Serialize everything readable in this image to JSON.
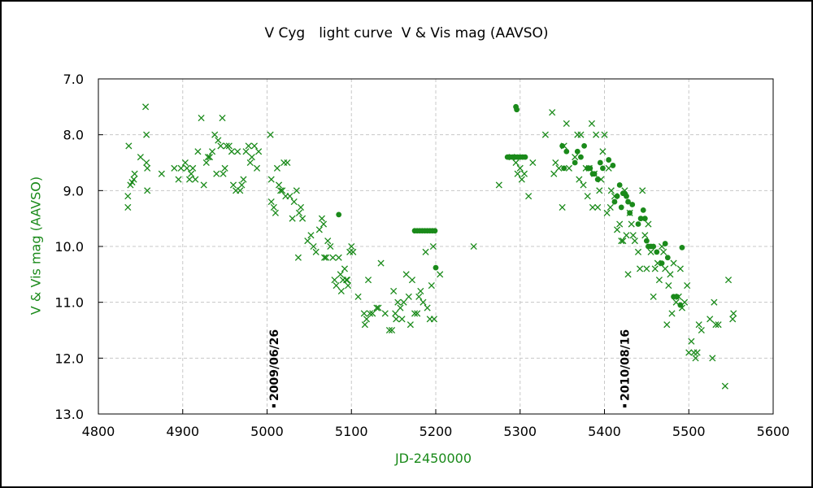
{
  "chart_data": {
    "type": "scatter",
    "title": "V Cyg　light curve  V & Vis mag (AAVSO)",
    "xlabel": "JD-2450000",
    "ylabel": "V & Vis mag (AAVSO)",
    "xlim": [
      4800,
      5600
    ],
    "ylim": [
      13.0,
      7.0
    ],
    "y_inverted": true,
    "xticks": [
      "4800",
      "4900",
      "5000",
      "5100",
      "5200",
      "5300",
      "5400",
      "5500",
      "5600"
    ],
    "yticks": [
      "7.0",
      "8.0",
      "9.0",
      "10.0",
      "11.0",
      "12.0",
      "13.0"
    ],
    "grid": true,
    "colors": {
      "series": "#1a8a1a",
      "grid": "#c8c8c8",
      "axis": "#000000"
    },
    "annotations": [
      {
        "text": "2009/06/26",
        "x": 5008
      },
      {
        "text": "2010/08/16",
        "x": 5424
      }
    ],
    "series": [
      {
        "name": "Vis",
        "marker": "x",
        "points": [
          [
            4835,
            9.1
          ],
          [
            4835,
            9.3
          ],
          [
            4836,
            8.2
          ],
          [
            4838,
            8.9
          ],
          [
            4840,
            8.85
          ],
          [
            4842,
            8.8
          ],
          [
            4843,
            8.7
          ],
          [
            4850,
            8.4
          ],
          [
            4856,
            7.5
          ],
          [
            4857,
            8.0
          ],
          [
            4857,
            8.5
          ],
          [
            4858,
            8.6
          ],
          [
            4858,
            9.0
          ],
          [
            4875,
            8.7
          ],
          [
            4890,
            8.6
          ],
          [
            4895,
            8.8
          ],
          [
            4898,
            8.6
          ],
          [
            4903,
            8.5
          ],
          [
            4905,
            8.6
          ],
          [
            4908,
            8.8
          ],
          [
            4910,
            8.7
          ],
          [
            4912,
            8.6
          ],
          [
            4915,
            8.8
          ],
          [
            4918,
            8.3
          ],
          [
            4922,
            7.7
          ],
          [
            4925,
            8.9
          ],
          [
            4928,
            8.5
          ],
          [
            4930,
            8.4
          ],
          [
            4932,
            8.4
          ],
          [
            4935,
            8.3
          ],
          [
            4938,
            8.0
          ],
          [
            4940,
            8.7
          ],
          [
            4942,
            8.1
          ],
          [
            4945,
            8.2
          ],
          [
            4947,
            7.7
          ],
          [
            4948,
            8.7
          ],
          [
            4950,
            8.6
          ],
          [
            4952,
            8.2
          ],
          [
            4955,
            8.2
          ],
          [
            4958,
            8.3
          ],
          [
            4960,
            8.9
          ],
          [
            4963,
            9.0
          ],
          [
            4965,
            8.3
          ],
          [
            4968,
            9.0
          ],
          [
            4970,
            8.9
          ],
          [
            4972,
            8.8
          ],
          [
            4975,
            8.3
          ],
          [
            4978,
            8.2
          ],
          [
            4980,
            8.5
          ],
          [
            4982,
            8.4
          ],
          [
            4985,
            8.2
          ],
          [
            4988,
            8.6
          ],
          [
            4990,
            8.3
          ],
          [
            5004,
            8.0
          ],
          [
            5005,
            8.8
          ],
          [
            5005,
            9.2
          ],
          [
            5008,
            9.3
          ],
          [
            5010,
            9.4
          ],
          [
            5012,
            8.6
          ],
          [
            5014,
            8.9
          ],
          [
            5016,
            9.0
          ],
          [
            5018,
            9.0
          ],
          [
            5020,
            8.5
          ],
          [
            5022,
            9.1
          ],
          [
            5024,
            8.5
          ],
          [
            5027,
            9.1
          ],
          [
            5030,
            9.5
          ],
          [
            5032,
            9.2
          ],
          [
            5035,
            9.0
          ],
          [
            5037,
            10.2
          ],
          [
            5038,
            9.4
          ],
          [
            5040,
            9.3
          ],
          [
            5042,
            9.5
          ],
          [
            5048,
            9.9
          ],
          [
            5052,
            9.8
          ],
          [
            5055,
            10.0
          ],
          [
            5058,
            10.1
          ],
          [
            5062,
            9.7
          ],
          [
            5065,
            9.5
          ],
          [
            5067,
            9.6
          ],
          [
            5068,
            10.2
          ],
          [
            5070,
            10.2
          ],
          [
            5072,
            9.9
          ],
          [
            5075,
            10.0
          ],
          [
            5078,
            10.2
          ],
          [
            5080,
            10.6
          ],
          [
            5082,
            10.7
          ],
          [
            5085,
            10.2
          ],
          [
            5087,
            10.5
          ],
          [
            5088,
            10.8
          ],
          [
            5090,
            10.6
          ],
          [
            5092,
            10.4
          ],
          [
            5094,
            10.6
          ],
          [
            5095,
            10.6
          ],
          [
            5096,
            10.7
          ],
          [
            5098,
            10.1
          ],
          [
            5100,
            10.0
          ],
          [
            5102,
            10.1
          ],
          [
            5108,
            10.9
          ],
          [
            5115,
            11.2
          ],
          [
            5116,
            11.4
          ],
          [
            5118,
            11.3
          ],
          [
            5120,
            10.6
          ],
          [
            5122,
            11.2
          ],
          [
            5125,
            11.2
          ],
          [
            5130,
            11.1
          ],
          [
            5132,
            11.1
          ],
          [
            5135,
            10.3
          ],
          [
            5140,
            11.2
          ],
          [
            5145,
            11.5
          ],
          [
            5148,
            11.5
          ],
          [
            5150,
            10.8
          ],
          [
            5152,
            11.2
          ],
          [
            5153,
            11.3
          ],
          [
            5155,
            11.0
          ],
          [
            5158,
            11.1
          ],
          [
            5160,
            11.3
          ],
          [
            5162,
            11.0
          ],
          [
            5165,
            10.5
          ],
          [
            5168,
            10.9
          ],
          [
            5170,
            11.4
          ],
          [
            5172,
            10.6
          ],
          [
            5175,
            11.2
          ],
          [
            5178,
            11.2
          ],
          [
            5180,
            10.9
          ],
          [
            5182,
            10.8
          ],
          [
            5185,
            11.0
          ],
          [
            5188,
            10.1
          ],
          [
            5190,
            11.1
          ],
          [
            5193,
            11.3
          ],
          [
            5195,
            10.7
          ],
          [
            5197,
            10.0
          ],
          [
            5198,
            11.3
          ],
          [
            5205,
            10.5
          ],
          [
            5245,
            10.0
          ],
          [
            5275,
            8.9
          ],
          [
            5290,
            8.4
          ],
          [
            5295,
            8.5
          ],
          [
            5297,
            8.7
          ],
          [
            5300,
            8.6
          ],
          [
            5302,
            8.8
          ],
          [
            5305,
            8.7
          ],
          [
            5310,
            9.1
          ],
          [
            5315,
            8.5
          ],
          [
            5330,
            8.0
          ],
          [
            5338,
            7.6
          ],
          [
            5340,
            8.7
          ],
          [
            5342,
            8.5
          ],
          [
            5346,
            8.6
          ],
          [
            5350,
            9.3
          ],
          [
            5352,
            8.2
          ],
          [
            5355,
            7.8
          ],
          [
            5358,
            8.6
          ],
          [
            5365,
            8.4
          ],
          [
            5368,
            8.0
          ],
          [
            5370,
            8.8
          ],
          [
            5372,
            8.0
          ],
          [
            5375,
            8.9
          ],
          [
            5378,
            8.6
          ],
          [
            5380,
            9.1
          ],
          [
            5382,
            8.6
          ],
          [
            5385,
            7.8
          ],
          [
            5386,
            9.3
          ],
          [
            5388,
            8.7
          ],
          [
            5390,
            8.0
          ],
          [
            5392,
            9.3
          ],
          [
            5394,
            9.0
          ],
          [
            5396,
            8.8
          ],
          [
            5398,
            8.3
          ],
          [
            5400,
            8.0
          ],
          [
            5403,
            9.4
          ],
          [
            5405,
            8.6
          ],
          [
            5407,
            9.3
          ],
          [
            5408,
            9.0
          ],
          [
            5412,
            9.1
          ],
          [
            5415,
            9.7
          ],
          [
            5418,
            9.6
          ],
          [
            5420,
            9.9
          ],
          [
            5422,
            9.9
          ],
          [
            5424,
            9.0
          ],
          [
            5426,
            9.8
          ],
          [
            5428,
            10.5
          ],
          [
            5430,
            9.4
          ],
          [
            5432,
            9.6
          ],
          [
            5434,
            9.8
          ],
          [
            5436,
            9.9
          ],
          [
            5440,
            10.1
          ],
          [
            5442,
            10.4
          ],
          [
            5445,
            9.0
          ],
          [
            5448,
            9.8
          ],
          [
            5450,
            10.4
          ],
          [
            5452,
            9.6
          ],
          [
            5455,
            10.1
          ],
          [
            5458,
            10.9
          ],
          [
            5460,
            10.4
          ],
          [
            5463,
            10.3
          ],
          [
            5465,
            10.6
          ],
          [
            5468,
            10.0
          ],
          [
            5470,
            10.1
          ],
          [
            5472,
            10.4
          ],
          [
            5474,
            11.4
          ],
          [
            5476,
            10.7
          ],
          [
            5478,
            10.5
          ],
          [
            5480,
            11.2
          ],
          [
            5482,
            10.3
          ],
          [
            5485,
            11.0
          ],
          [
            5488,
            10.9
          ],
          [
            5490,
            10.4
          ],
          [
            5492,
            11.1
          ],
          [
            5495,
            11.0
          ],
          [
            5498,
            10.7
          ],
          [
            5500,
            11.9
          ],
          [
            5503,
            11.7
          ],
          [
            5506,
            11.9
          ],
          [
            5508,
            12.0
          ],
          [
            5510,
            11.9
          ],
          [
            5512,
            11.4
          ],
          [
            5515,
            11.5
          ],
          [
            5525,
            11.3
          ],
          [
            5528,
            12.0
          ],
          [
            5530,
            11.0
          ],
          [
            5532,
            11.4
          ],
          [
            5535,
            11.4
          ],
          [
            5543,
            12.5
          ],
          [
            5547,
            10.6
          ],
          [
            5552,
            11.3
          ],
          [
            5553,
            11.2
          ]
        ]
      },
      {
        "name": "V",
        "marker": "filled-circle",
        "points": [
          [
            5085,
            9.43
          ],
          [
            5175,
            9.72
          ],
          [
            5178,
            9.72
          ],
          [
            5181,
            9.72
          ],
          [
            5184,
            9.72
          ],
          [
            5187,
            9.72
          ],
          [
            5190,
            9.72
          ],
          [
            5193,
            9.72
          ],
          [
            5196,
            9.72
          ],
          [
            5199,
            9.72
          ],
          [
            5200,
            10.38
          ],
          [
            5285,
            8.4
          ],
          [
            5288,
            8.4
          ],
          [
            5291,
            8.4
          ],
          [
            5294,
            8.4
          ],
          [
            5295,
            7.5
          ],
          [
            5296,
            7.55
          ],
          [
            5297,
            8.4
          ],
          [
            5300,
            8.4
          ],
          [
            5303,
            8.4
          ],
          [
            5306,
            8.4
          ],
          [
            5350,
            8.2
          ],
          [
            5352,
            8.6
          ],
          [
            5355,
            8.3
          ],
          [
            5365,
            8.5
          ],
          [
            5368,
            8.3
          ],
          [
            5372,
            8.4
          ],
          [
            5376,
            8.2
          ],
          [
            5380,
            8.6
          ],
          [
            5383,
            8.6
          ],
          [
            5386,
            8.7
          ],
          [
            5388,
            8.7
          ],
          [
            5392,
            8.8
          ],
          [
            5395,
            8.5
          ],
          [
            5398,
            8.6
          ],
          [
            5405,
            8.45
          ],
          [
            5410,
            8.55
          ],
          [
            5412,
            9.2
          ],
          [
            5415,
            9.1
          ],
          [
            5418,
            8.9
          ],
          [
            5420,
            9.3
          ],
          [
            5422,
            9.05
          ],
          [
            5424,
            9.05
          ],
          [
            5426,
            9.1
          ],
          [
            5428,
            9.2
          ],
          [
            5430,
            9.4
          ],
          [
            5433,
            9.25
          ],
          [
            5440,
            9.6
          ],
          [
            5443,
            9.5
          ],
          [
            5446,
            9.35
          ],
          [
            5448,
            9.5
          ],
          [
            5450,
            9.9
          ],
          [
            5452,
            10.0
          ],
          [
            5455,
            10.0
          ],
          [
            5458,
            10.0
          ],
          [
            5462,
            10.1
          ],
          [
            5468,
            10.3
          ],
          [
            5472,
            9.95
          ],
          [
            5475,
            10.2
          ],
          [
            5482,
            10.9
          ],
          [
            5486,
            10.9
          ],
          [
            5490,
            11.05
          ],
          [
            5492,
            10.02
          ]
        ]
      }
    ]
  }
}
